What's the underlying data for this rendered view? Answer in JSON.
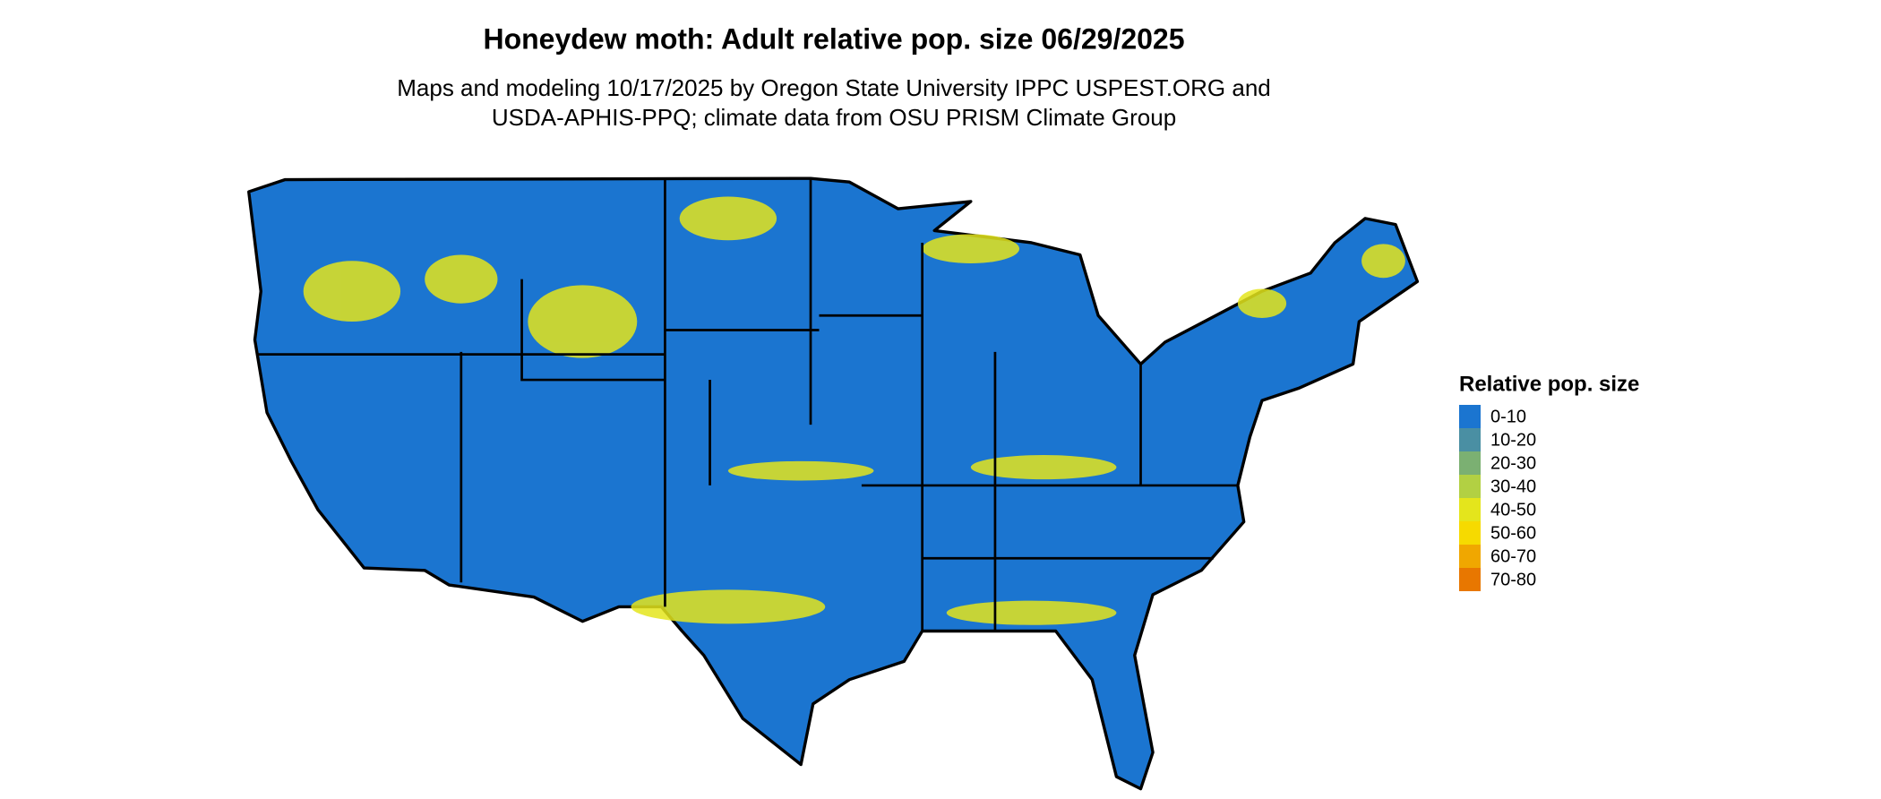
{
  "title": "Honeydew moth: Adult relative pop. size 06/29/2025",
  "subtitle_lines": [
    "Maps and modeling 10/17/2025 by Oregon State University IPPC USPEST.ORG and",
    "USDA-APHIS-PPQ; climate data from OSU PRISM Climate Group"
  ],
  "legend": {
    "title": "Relative pop. size",
    "items": [
      {
        "label": "0-10",
        "color": "#1b75d0"
      },
      {
        "label": "10-20",
        "color": "#4a8fa3"
      },
      {
        "label": "20-30",
        "color": "#7bb072"
      },
      {
        "label": "30-40",
        "color": "#b2d043"
      },
      {
        "label": "40-50",
        "color": "#e4e51c"
      },
      {
        "label": "50-60",
        "color": "#f6da00"
      },
      {
        "label": "60-70",
        "color": "#f0a700"
      },
      {
        "label": "70-80",
        "color": "#e87700"
      }
    ]
  }
}
